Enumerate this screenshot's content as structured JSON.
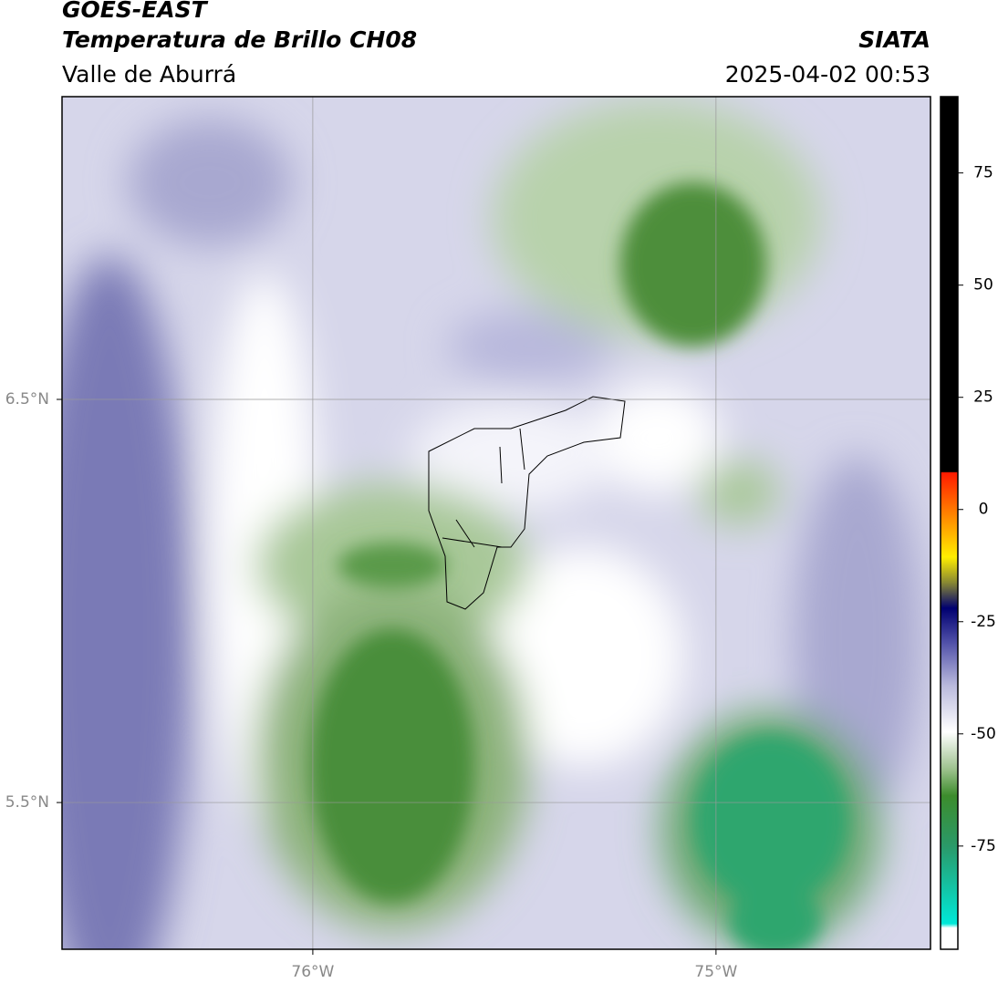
{
  "header": {
    "title": "GOES-EAST",
    "subtitle": "Temperatura de Brillo CH08",
    "region": "Valle de Aburrá",
    "source": "SIATA",
    "datetime": "2025-04-02 00:53"
  },
  "map": {
    "xlim": [
      -76.622,
      -74.468
    ],
    "ylim": [
      5.136,
      7.251
    ],
    "xticks": [
      {
        "value": -76,
        "label": "76°W"
      },
      {
        "value": -75,
        "label": "75°W"
      }
    ],
    "yticks": [
      {
        "value": 5.5,
        "label": "5.5°N"
      },
      {
        "value": 6.5,
        "label": "6.5°N"
      }
    ]
  },
  "colorbar": {
    "lim": [
      -98,
      92
    ],
    "ticks": [
      -75,
      -50,
      -25,
      0,
      25,
      50,
      75
    ]
  }
}
